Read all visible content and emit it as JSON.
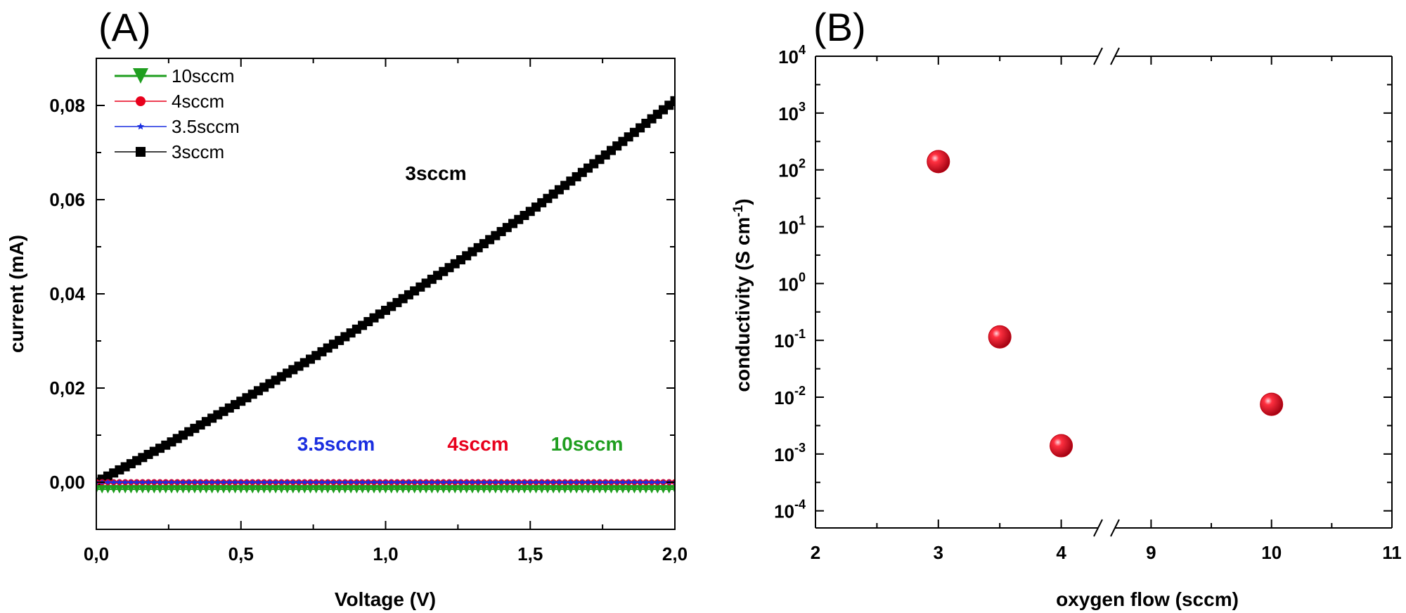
{
  "chart_data": [
    {
      "panel_label": "(A)",
      "type": "line",
      "xlabel": "Voltage (V)",
      "ylabel": "current (mA)",
      "xlim": [
        0.0,
        2.0
      ],
      "ylim": [
        -0.01,
        0.09
      ],
      "x_ticks": [
        "0,0",
        "0,5",
        "1,0",
        "1,5",
        "2,0"
      ],
      "y_ticks": [
        "0,00",
        "0,02",
        "0,04",
        "0,06",
        "0,08"
      ],
      "legend": [
        "10sccm",
        "4sccm",
        "3.5sccm",
        "3sccm"
      ],
      "legend_position": "top-left",
      "series": [
        {
          "name": "10sccm",
          "color": "#1f9e1f",
          "marker": "triangle-down",
          "x": [
            0.0,
            2.0
          ],
          "values": [
            -0.0015,
            -0.0015
          ]
        },
        {
          "name": "4sccm",
          "color": "#e8001c",
          "marker": "circle",
          "x": [
            0.0,
            2.0
          ],
          "values": [
            0.0,
            0.0
          ]
        },
        {
          "name": "3.5sccm",
          "color": "#1a2ee0",
          "marker": "star",
          "x": [
            0.0,
            2.0
          ],
          "values": [
            0.0,
            0.0
          ]
        },
        {
          "name": "3sccm",
          "color": "#000000",
          "marker": "square",
          "x": [
            0.0,
            0.25,
            0.5,
            0.75,
            1.0,
            1.25,
            1.5,
            1.75,
            2.0
          ],
          "values": [
            0.0,
            0.0082,
            0.0172,
            0.0265,
            0.0365,
            0.0468,
            0.0575,
            0.069,
            0.081
          ]
        }
      ],
      "annotations": [
        {
          "text": "3sccm",
          "color": "#000000"
        },
        {
          "text": "3.5sccm",
          "color": "#1a2ee0"
        },
        {
          "text": "4sccm",
          "color": "#e8001c"
        },
        {
          "text": "10sccm",
          "color": "#1f9e1f"
        }
      ]
    },
    {
      "panel_label": "(B)",
      "type": "scatter",
      "xlabel": "oxygen flow (sccm)",
      "ylabel": "conductivity (S cm",
      "ylabel_superscript": "-1",
      "ylabel_suffix": ")",
      "yscale": "log",
      "ylim": [
        5e-05,
        10000
      ],
      "broken_x_axis": true,
      "x_segments": [
        [
          2,
          4.3
        ],
        [
          8.7,
          11
        ]
      ],
      "x_ticks": [
        "2",
        "3",
        "4",
        "9",
        "10",
        "11"
      ],
      "y_ticks": [
        {
          "base": "10",
          "exp": "4"
        },
        {
          "base": "10",
          "exp": "3"
        },
        {
          "base": "10",
          "exp": "2"
        },
        {
          "base": "10",
          "exp": "1"
        },
        {
          "base": "10",
          "exp": "0"
        },
        {
          "base": "10",
          "exp": "-1"
        },
        {
          "base": "10",
          "exp": "-2"
        },
        {
          "base": "10",
          "exp": "-3"
        },
        {
          "base": "10",
          "exp": "-4"
        }
      ],
      "points": [
        {
          "x": 3,
          "y": 140
        },
        {
          "x": 3.5,
          "y": 0.115
        },
        {
          "x": 4,
          "y": 0.0014
        },
        {
          "x": 10,
          "y": 0.0075
        }
      ],
      "marker_color": "#e8001c"
    }
  ]
}
